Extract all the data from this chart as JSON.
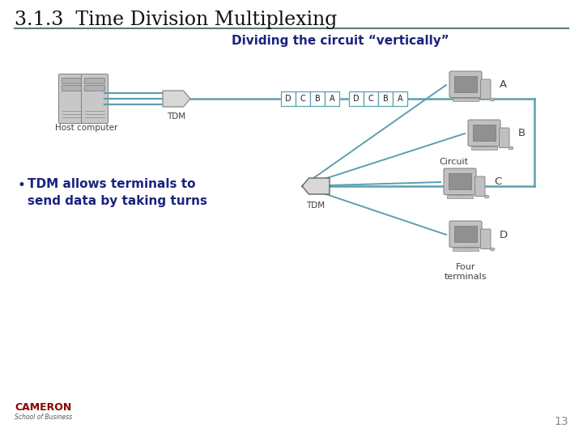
{
  "title": "3.1.3  Time Division Multiplexing",
  "subtitle": "Dividing the circuit “vertically”",
  "bullet": "TDM allows terminals to\nsend data by taking turns",
  "host_label": "Host computer",
  "tdm_label_top": "TDM",
  "tdm_label_bottom": "TDM",
  "circuit_label": "Circuit",
  "terminals_label": "Four\nterminals",
  "terminal_labels": [
    "A",
    "B",
    "C",
    "D"
  ],
  "slot_labels": [
    "D",
    "C",
    "B",
    "A"
  ],
  "bg_color": "#ffffff",
  "title_color": "#111111",
  "subtitle_color": "#1a237e",
  "bullet_color": "#1a237e",
  "line_color": "#5aa0b0",
  "slot_border_color": "#5aa0b0",
  "slot_bg_color": "#ffffff",
  "label_color": "#404040",
  "page_number": "13",
  "cameron_color": "#8B0000",
  "school_color": "#555555",
  "separator_color": "#607d6a"
}
